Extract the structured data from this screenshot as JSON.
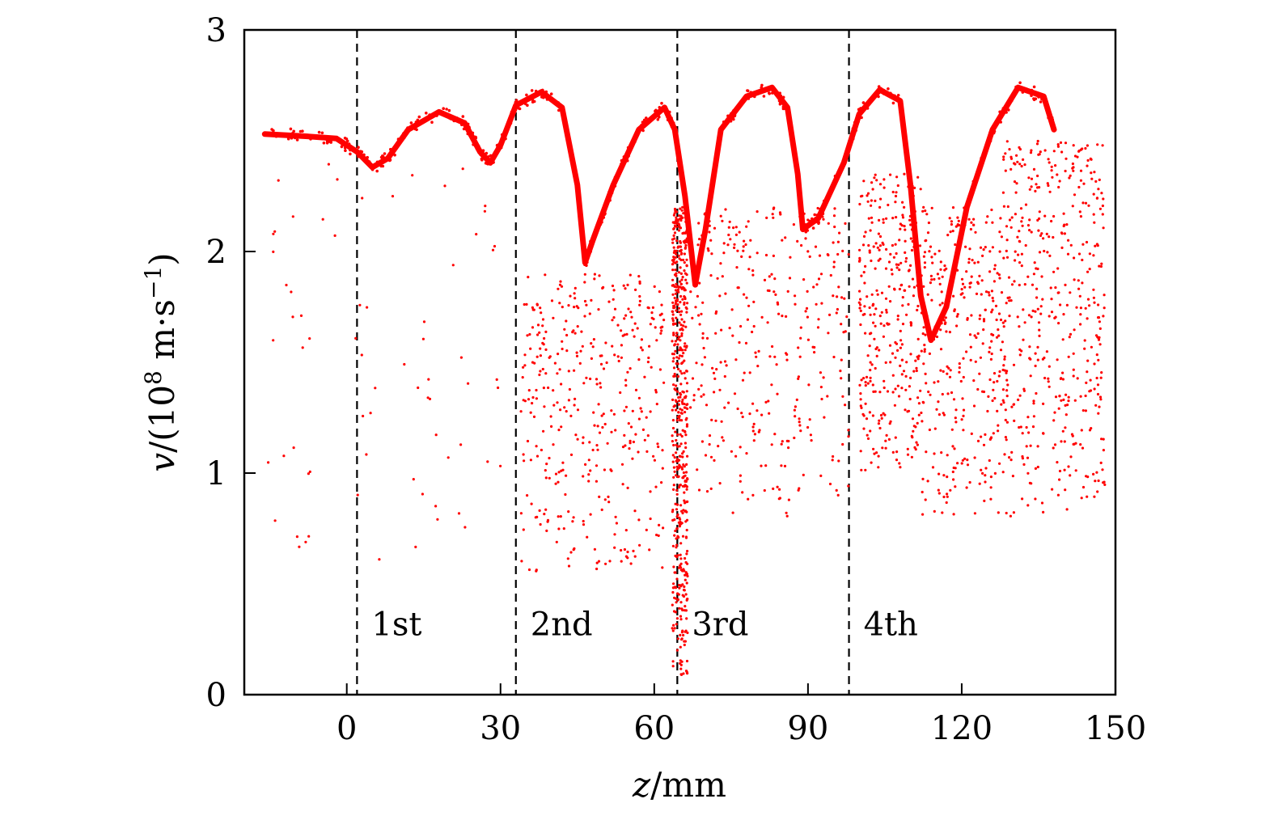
{
  "chart_data": {
    "type": "scatter",
    "title": "",
    "xlabel": {
      "var": "z",
      "unit": "/mm"
    },
    "ylabel": {
      "var": "v",
      "prefix": "/(10",
      "exp": "8",
      "mid": " m·s",
      "exp2": "−1",
      "suffix": ")"
    },
    "xlim": [
      -20,
      150
    ],
    "ylim": [
      0,
      3
    ],
    "xticks": [
      0,
      30,
      60,
      90,
      120,
      150
    ],
    "yticks": [
      0,
      1,
      2,
      3
    ],
    "xtick_labels": [
      "0",
      "30",
      "60",
      "90",
      "120",
      "150"
    ],
    "ytick_labels": [
      "0",
      "1",
      "2",
      "3"
    ],
    "marker_color": "#ff0000",
    "stage_lines": [
      {
        "x": 2,
        "label": "1st"
      },
      {
        "x": 33,
        "label": "2nd"
      },
      {
        "x": 64.5,
        "label": "3rd"
      },
      {
        "x": 98,
        "label": "4th"
      }
    ],
    "stage_label_y": 0.32,
    "main_band": {
      "description": "dense electron velocity band",
      "points": [
        [
          -16,
          2.53
        ],
        [
          -8,
          2.52
        ],
        [
          -2,
          2.51
        ],
        [
          2,
          2.45
        ],
        [
          5,
          2.38
        ],
        [
          8,
          2.42
        ],
        [
          12,
          2.55
        ],
        [
          18,
          2.63
        ],
        [
          23,
          2.58
        ],
        [
          26,
          2.45
        ],
        [
          28,
          2.4
        ],
        [
          30,
          2.48
        ],
        [
          33,
          2.66
        ],
        [
          38,
          2.72
        ],
        [
          42,
          2.65
        ],
        [
          45,
          2.3
        ],
        [
          46.5,
          1.95
        ],
        [
          48,
          2.05
        ],
        [
          52,
          2.3
        ],
        [
          57,
          2.55
        ],
        [
          62,
          2.65
        ],
        [
          64,
          2.55
        ],
        [
          66,
          2.25
        ],
        [
          68,
          1.85
        ],
        [
          70,
          2.1
        ],
        [
          73,
          2.55
        ],
        [
          78,
          2.7
        ],
        [
          83,
          2.74
        ],
        [
          86,
          2.65
        ],
        [
          88,
          2.35
        ],
        [
          89,
          2.1
        ],
        [
          92,
          2.15
        ],
        [
          97,
          2.4
        ],
        [
          100,
          2.62
        ],
        [
          104,
          2.73
        ],
        [
          108,
          2.68
        ],
        [
          110,
          2.3
        ],
        [
          112,
          1.8
        ],
        [
          114,
          1.6
        ],
        [
          117,
          1.75
        ],
        [
          121,
          2.2
        ],
        [
          126,
          2.55
        ],
        [
          131,
          2.74
        ],
        [
          136,
          2.7
        ],
        [
          138,
          2.55
        ]
      ]
    },
    "scatter_clusters": [
      {
        "name": "early-sparse",
        "x": [
          -16,
          30
        ],
        "y": [
          0.6,
          2.4
        ],
        "count": 70
      },
      {
        "name": "stage2-cloud",
        "x": [
          34,
          62
        ],
        "y": [
          0.55,
          1.9
        ],
        "count": 380
      },
      {
        "name": "stage3-spike",
        "x": [
          63.5,
          66.5
        ],
        "y": [
          0.07,
          2.2
        ],
        "count": 520
      },
      {
        "name": "stage3-cloud",
        "x": [
          67,
          98
        ],
        "y": [
          0.8,
          2.2
        ],
        "count": 330
      },
      {
        "name": "stage4-cloud-a",
        "x": [
          100,
          112
        ],
        "y": [
          1.0,
          2.35
        ],
        "count": 320
      },
      {
        "name": "stage4-cloud-b",
        "x": [
          112,
          128
        ],
        "y": [
          0.8,
          2.2
        ],
        "count": 320
      },
      {
        "name": "stage4-cloud-c",
        "x": [
          128,
          148
        ],
        "y": [
          0.8,
          2.5
        ],
        "count": 460
      }
    ]
  }
}
